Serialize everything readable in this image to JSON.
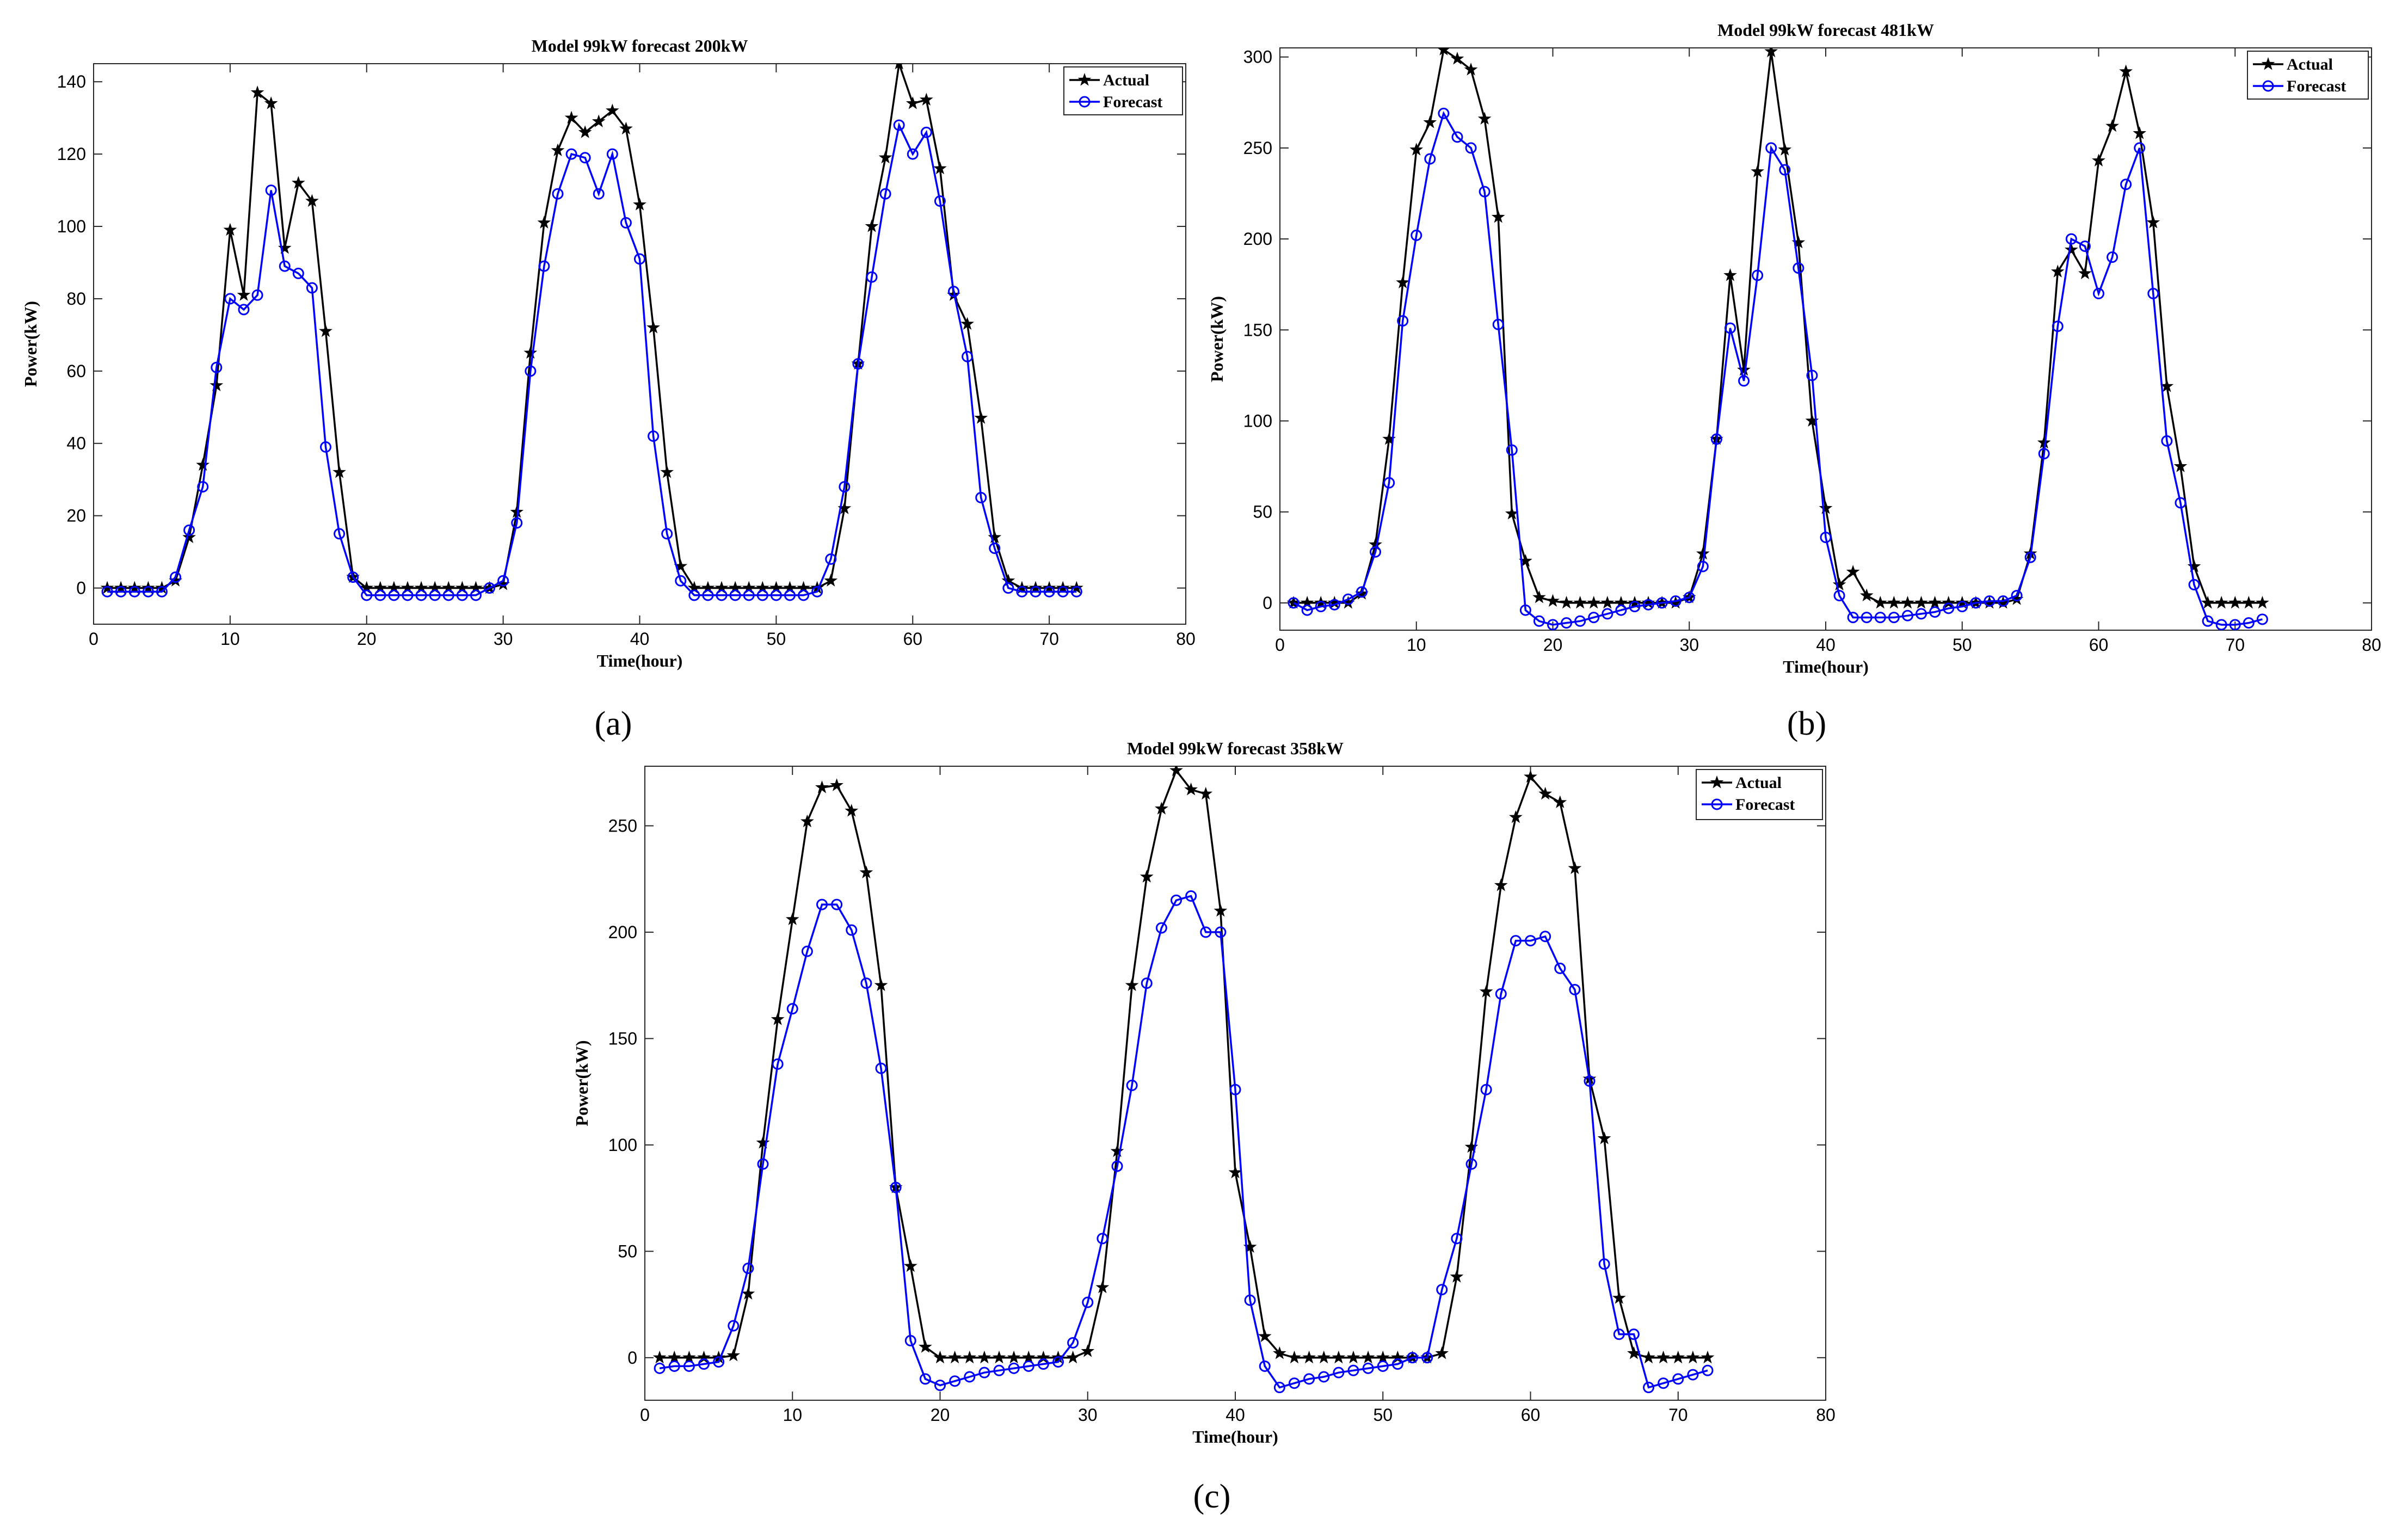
{
  "chart_data": [
    {
      "type": "line",
      "panel_label": "(a)",
      "title": "Model 99kW forecast 200kW",
      "xlabel": "Time(hour)",
      "ylabel": "Power(kW)",
      "xlim": [
        0,
        80
      ],
      "ylim": [
        -10,
        145
      ],
      "xticks": [
        0,
        10,
        20,
        30,
        40,
        50,
        60,
        70,
        80
      ],
      "yticks": [
        0,
        20,
        40,
        60,
        80,
        100,
        120,
        140
      ],
      "legend_position": "top-right",
      "series": [
        {
          "name": "Actual",
          "color": "#000000",
          "marker": "star",
          "x": [
            1,
            2,
            3,
            4,
            5,
            6,
            7,
            8,
            9,
            10,
            11,
            12,
            13,
            14,
            15,
            16,
            17,
            18,
            19,
            20,
            21,
            22,
            23,
            24,
            25,
            26,
            27,
            28,
            29,
            30,
            31,
            32,
            33,
            34,
            35,
            36,
            37,
            38,
            39,
            40,
            41,
            42,
            43,
            44,
            45,
            46,
            47,
            48,
            49,
            50,
            51,
            52,
            53,
            54,
            55,
            56,
            57,
            58,
            59,
            60,
            61,
            62,
            63,
            64,
            65,
            66,
            67,
            68,
            69,
            70,
            71,
            72
          ],
          "y": [
            0,
            0,
            0,
            0,
            0,
            2,
            14,
            34,
            56,
            99,
            81,
            137,
            134,
            94,
            112,
            107,
            71,
            32,
            3,
            0,
            0,
            0,
            0,
            0,
            0,
            0,
            0,
            0,
            0,
            1,
            21,
            65,
            101,
            121,
            130,
            126,
            129,
            132,
            127,
            106,
            72,
            32,
            6,
            0,
            0,
            0,
            0,
            0,
            0,
            0,
            0,
            0,
            0,
            2,
            22,
            62,
            100,
            119,
            145,
            134,
            135,
            116,
            81,
            73,
            47,
            14,
            2,
            0,
            0,
            0,
            0,
            0
          ]
        },
        {
          "name": "Forecast",
          "color": "#0000ff",
          "marker": "circle",
          "x": [
            1,
            2,
            3,
            4,
            5,
            6,
            7,
            8,
            9,
            10,
            11,
            12,
            13,
            14,
            15,
            16,
            17,
            18,
            19,
            20,
            21,
            22,
            23,
            24,
            25,
            26,
            27,
            28,
            29,
            30,
            31,
            32,
            33,
            34,
            35,
            36,
            37,
            38,
            39,
            40,
            41,
            42,
            43,
            44,
            45,
            46,
            47,
            48,
            49,
            50,
            51,
            52,
            53,
            54,
            55,
            56,
            57,
            58,
            59,
            60,
            61,
            62,
            63,
            64,
            65,
            66,
            67,
            68,
            69,
            70,
            71,
            72
          ],
          "y": [
            -1,
            -1,
            -1,
            -1,
            -1,
            3,
            16,
            28,
            61,
            80,
            77,
            81,
            110,
            89,
            87,
            83,
            39,
            15,
            3,
            -2,
            -2,
            -2,
            -2,
            -2,
            -2,
            -2,
            -2,
            -2,
            0,
            2,
            18,
            60,
            89,
            109,
            120,
            119,
            109,
            120,
            101,
            91,
            42,
            15,
            2,
            -2,
            -2,
            -2,
            -2,
            -2,
            -2,
            -2,
            -2,
            -2,
            -1,
            8,
            28,
            62,
            86,
            109,
            128,
            120,
            126,
            107,
            82,
            64,
            25,
            11,
            0,
            -1,
            -1,
            -1,
            -1,
            -1
          ]
        }
      ]
    },
    {
      "type": "line",
      "panel_label": "(b)",
      "title": "Model 99kW forecast 481kW",
      "xlabel": "Time(hour)",
      "ylabel": "Power(kW)",
      "xlim": [
        0,
        80
      ],
      "ylim": [
        -15,
        305
      ],
      "xticks": [
        0,
        10,
        20,
        30,
        40,
        50,
        60,
        70,
        80
      ],
      "yticks": [
        0,
        50,
        100,
        150,
        200,
        250,
        300
      ],
      "legend_position": "top-right",
      "series": [
        {
          "name": "Actual",
          "color": "#000000",
          "marker": "star",
          "x": [
            1,
            2,
            3,
            4,
            5,
            6,
            7,
            8,
            9,
            10,
            11,
            12,
            13,
            14,
            15,
            16,
            17,
            18,
            19,
            20,
            21,
            22,
            23,
            24,
            25,
            26,
            27,
            28,
            29,
            30,
            31,
            32,
            33,
            34,
            35,
            36,
            37,
            38,
            39,
            40,
            41,
            42,
            43,
            44,
            45,
            46,
            47,
            48,
            49,
            50,
            51,
            52,
            53,
            54,
            55,
            56,
            57,
            58,
            59,
            60,
            61,
            62,
            63,
            64,
            65,
            66,
            67,
            68,
            69,
            70,
            71,
            72
          ],
          "y": [
            0,
            0,
            0,
            0,
            0,
            5,
            32,
            90,
            176,
            249,
            264,
            304,
            299,
            293,
            266,
            212,
            49,
            23,
            3,
            1,
            0,
            0,
            0,
            0,
            0,
            0,
            0,
            0,
            0,
            3,
            27,
            90,
            180,
            128,
            237,
            303,
            249,
            198,
            100,
            52,
            10,
            17,
            4,
            0,
            0,
            0,
            0,
            0,
            0,
            0,
            0,
            0,
            0,
            2,
            27,
            88,
            182,
            194,
            181,
            243,
            262,
            292,
            258,
            209,
            119,
            75,
            20,
            0,
            0,
            0,
            0,
            0
          ]
        },
        {
          "name": "Forecast",
          "color": "#0000ff",
          "marker": "circle",
          "x": [
            1,
            2,
            3,
            4,
            5,
            6,
            7,
            8,
            9,
            10,
            11,
            12,
            13,
            14,
            15,
            16,
            17,
            18,
            19,
            20,
            21,
            22,
            23,
            24,
            25,
            26,
            27,
            28,
            29,
            30,
            31,
            32,
            33,
            34,
            35,
            36,
            37,
            38,
            39,
            40,
            41,
            42,
            43,
            44,
            45,
            46,
            47,
            48,
            49,
            50,
            51,
            52,
            53,
            54,
            55,
            56,
            57,
            58,
            59,
            60,
            61,
            62,
            63,
            64,
            65,
            66,
            67,
            68,
            69,
            70,
            71,
            72
          ],
          "y": [
            0,
            -4,
            -2,
            -1,
            2,
            6,
            28,
            66,
            155,
            202,
            244,
            269,
            256,
            250,
            226,
            153,
            84,
            -4,
            -10,
            -12,
            -11,
            -10,
            -8,
            -6,
            -4,
            -2,
            -1,
            0,
            1,
            3,
            20,
            90,
            151,
            122,
            180,
            250,
            238,
            184,
            125,
            36,
            4,
            -8,
            -8,
            -8,
            -8,
            -7,
            -6,
            -5,
            -3,
            -2,
            0,
            1,
            1,
            4,
            25,
            82,
            152,
            200,
            196,
            170,
            190,
            230,
            250,
            170,
            89,
            55,
            10,
            -10,
            -12,
            -12,
            -11,
            -9
          ]
        }
      ]
    },
    {
      "type": "line",
      "panel_label": "(c)",
      "title": "Model 99kW forecast 358kW",
      "xlabel": "Time(hour)",
      "ylabel": "Power(kW)",
      "xlim": [
        0,
        80
      ],
      "ylim": [
        -20,
        278
      ],
      "xticks": [
        0,
        10,
        20,
        30,
        40,
        50,
        60,
        70,
        80
      ],
      "yticks": [
        0,
        50,
        100,
        150,
        200,
        250
      ],
      "legend_position": "top-right",
      "series": [
        {
          "name": "Actual",
          "color": "#000000",
          "marker": "star",
          "x": [
            1,
            2,
            3,
            4,
            5,
            6,
            7,
            8,
            9,
            10,
            11,
            12,
            13,
            14,
            15,
            16,
            17,
            18,
            19,
            20,
            21,
            22,
            23,
            24,
            25,
            26,
            27,
            28,
            29,
            30,
            31,
            32,
            33,
            34,
            35,
            36,
            37,
            38,
            39,
            40,
            41,
            42,
            43,
            44,
            45,
            46,
            47,
            48,
            49,
            50,
            51,
            52,
            53,
            54,
            55,
            56,
            57,
            58,
            59,
            60,
            61,
            62,
            63,
            64,
            65,
            66,
            67,
            68,
            69,
            70,
            71,
            72
          ],
          "y": [
            0,
            0,
            0,
            0,
            0,
            1,
            30,
            101,
            159,
            206,
            252,
            268,
            269,
            257,
            228,
            175,
            80,
            43,
            5,
            0,
            0,
            0,
            0,
            0,
            0,
            0,
            0,
            0,
            0,
            3,
            33,
            97,
            175,
            226,
            258,
            276,
            267,
            265,
            210,
            87,
            52,
            10,
            2,
            0,
            0,
            0,
            0,
            0,
            0,
            0,
            0,
            0,
            0,
            2,
            38,
            99,
            172,
            222,
            254,
            273,
            265,
            261,
            230,
            131,
            103,
            28,
            2,
            0,
            0,
            0,
            0,
            0
          ]
        },
        {
          "name": "Forecast",
          "color": "#0000ff",
          "marker": "circle",
          "x": [
            1,
            2,
            3,
            4,
            5,
            6,
            7,
            8,
            9,
            10,
            11,
            12,
            13,
            14,
            15,
            16,
            17,
            18,
            19,
            20,
            21,
            22,
            23,
            24,
            25,
            26,
            27,
            28,
            29,
            30,
            31,
            32,
            33,
            34,
            35,
            36,
            37,
            38,
            39,
            40,
            41,
            42,
            43,
            44,
            45,
            46,
            47,
            48,
            49,
            50,
            51,
            52,
            53,
            54,
            55,
            56,
            57,
            58,
            59,
            60,
            61,
            62,
            63,
            64,
            65,
            66,
            67,
            68,
            69,
            70,
            71,
            72
          ],
          "y": [
            -5,
            -4,
            -4,
            -3,
            -2,
            15,
            42,
            91,
            138,
            164,
            191,
            213,
            213,
            201,
            176,
            136,
            80,
            8,
            -10,
            -13,
            -11,
            -9,
            -7,
            -6,
            -5,
            -4,
            -3,
            -2,
            7,
            26,
            56,
            90,
            128,
            176,
            202,
            215,
            217,
            200,
            200,
            126,
            27,
            -4,
            -14,
            -12,
            -10,
            -9,
            -7,
            -6,
            -5,
            -4,
            -3,
            0,
            0,
            32,
            56,
            91,
            126,
            171,
            196,
            196,
            198,
            183,
            173,
            130,
            44,
            11,
            11,
            -14,
            -12,
            -10,
            -8,
            -6
          ]
        }
      ]
    }
  ]
}
